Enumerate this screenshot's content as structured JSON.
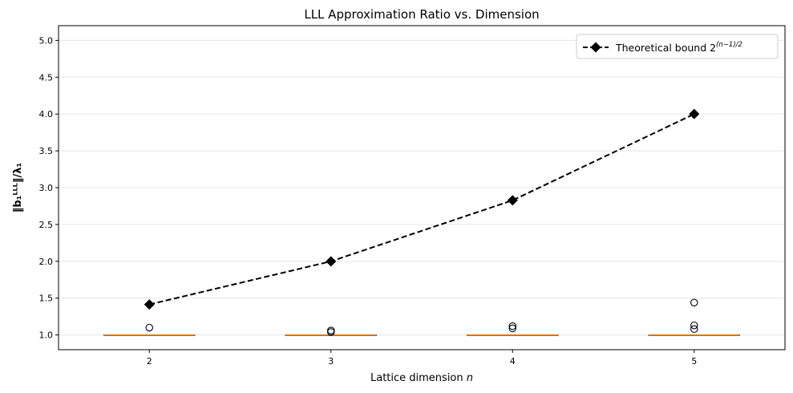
{
  "chart_data": {
    "type": "box",
    "title": "LLL Approximation Ratio vs. Dimension",
    "xlabel": "Lattice dimension",
    "xlabel_var": "n",
    "ylabel": "‖b₁ᴸᴸᴸ‖/λ₁",
    "categories": [
      "2",
      "3",
      "4",
      "5"
    ],
    "ylim": [
      0.8,
      5.2
    ],
    "yticks": [
      "1.0",
      "1.5",
      "2.0",
      "2.5",
      "3.0",
      "3.5",
      "4.0",
      "4.5",
      "5.0"
    ],
    "grid": "y",
    "legend_position": "top-right",
    "boxes": [
      {
        "category": "2",
        "q1": 1.0,
        "median": 1.0,
        "q3": 1.0,
        "whisker_low": 1.0,
        "whisker_high": 1.0,
        "outliers": [
          1.1
        ]
      },
      {
        "category": "3",
        "q1": 1.0,
        "median": 1.0,
        "q3": 1.0,
        "whisker_low": 1.0,
        "whisker_high": 1.0,
        "outliers": [
          1.04,
          1.06
        ]
      },
      {
        "category": "4",
        "q1": 1.0,
        "median": 1.0,
        "q3": 1.0,
        "whisker_low": 1.0,
        "whisker_high": 1.0,
        "outliers": [
          1.09,
          1.12
        ]
      },
      {
        "category": "5",
        "q1": 1.0,
        "median": 1.0,
        "q3": 1.0,
        "whisker_low": 1.0,
        "whisker_high": 1.0,
        "outliers": [
          1.08,
          1.13,
          1.44
        ]
      }
    ],
    "series": [
      {
        "name": "Theoretical bound",
        "name_expr": "2",
        "name_exp": "(n−1)/2",
        "type": "line",
        "style": "dashed",
        "marker": "diamond",
        "x": [
          2,
          3,
          4,
          5
        ],
        "values": [
          1.414,
          2.0,
          2.828,
          4.0
        ]
      }
    ],
    "colors": {
      "bound_line": "#000000",
      "median": "#ff7f0e",
      "box": "#000000",
      "grid": "#e6e6e6"
    }
  }
}
